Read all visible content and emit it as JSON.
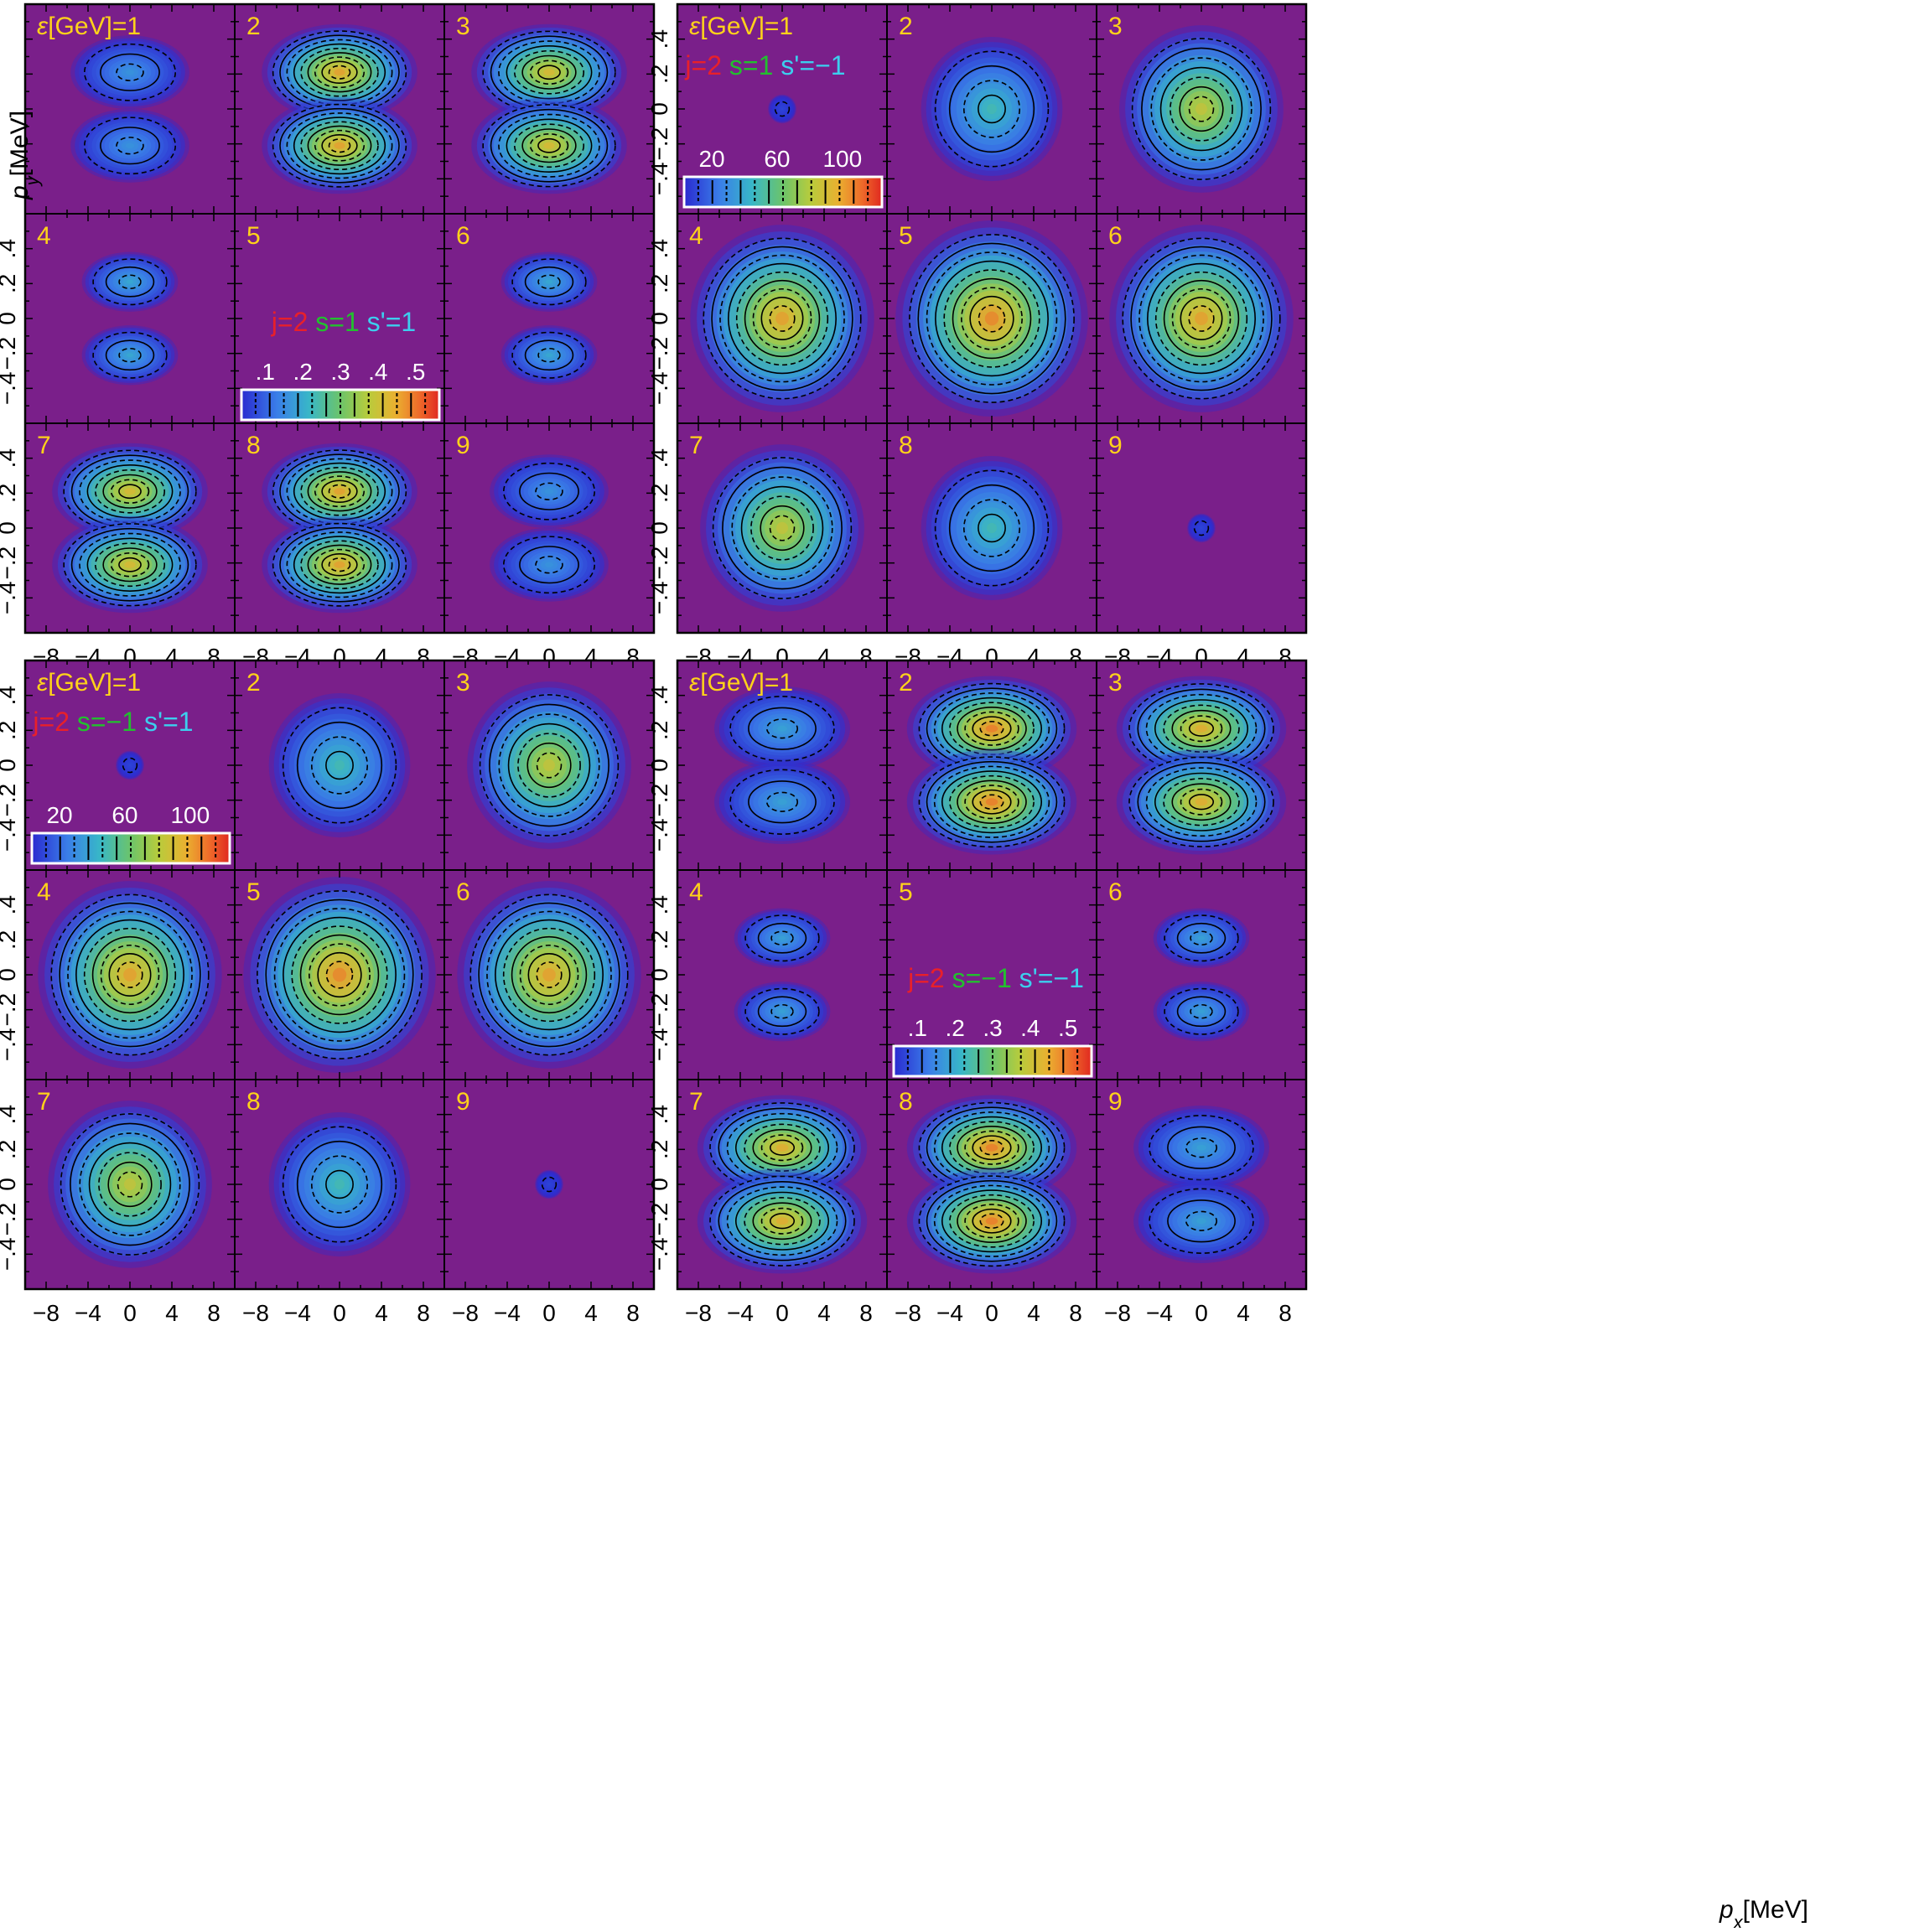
{
  "panel_label_prefix": "ε[GeV]=1",
  "y_axis_label": "p",
  "y_axis_label_sub": "y",
  "y_axis_label_unit": "[MeV]",
  "x_axis_label": "p",
  "x_axis_label_sub": "x",
  "x_axis_label_unit": "[MeV]",
  "colors": {
    "background": "#7a1f8a",
    "panel_number": "#ffd21a",
    "j_label": "#e8202a",
    "s_label": "#22c02e",
    "sp_label": "#3ccfee",
    "frame": "#000000",
    "legend_border": "#ffffff",
    "legend_text": "#ffffff"
  },
  "chart_data": [
    {
      "type": "heatmap",
      "grid": "3x3",
      "legend_position": "top-left",
      "panel_numbers": [
        "ε[GeV]=1",
        "2",
        "3",
        "4",
        "5",
        "6",
        "7",
        "8",
        "9"
      ],
      "quantum_numbers": {
        "j": "j=2",
        "s": "s=1",
        "sp": "s'=1"
      },
      "label_panel": 4,
      "colorbar_ticks": [
        ".1",
        ".2",
        ".3",
        ".4",
        ".5"
      ],
      "colorbar_panel": 4,
      "lobes": "two",
      "xlim": [
        -10,
        10
      ],
      "ylim": [
        -0.6,
        0.6
      ],
      "x_ticks": [
        "−8",
        "−4",
        "0",
        "4",
        "8"
      ],
      "y_ticks": [
        "−.4",
        "−.2",
        "0",
        ".2",
        ".4"
      ],
      "peak_by_panel": [
        0.26,
        0.85,
        0.78,
        0.32,
        0.0,
        0.32,
        0.78,
        0.85,
        0.26
      ],
      "ellipse_wx": [
        4.2,
        5.5,
        5.5,
        3.4,
        0.0,
        3.4,
        5.5,
        5.5,
        4.2
      ],
      "lobe_y": 0.21
    },
    {
      "type": "heatmap",
      "grid": "3x3",
      "legend_position": "top-left",
      "panel_numbers": [
        "ε[GeV]=1",
        "2",
        "3",
        "4",
        "5",
        "6",
        "7",
        "8",
        "9"
      ],
      "quantum_numbers": {
        "j": "j=2",
        "s": "s=1",
        "sp": "s'=−1"
      },
      "label_panel": 0,
      "colorbar_ticks": [
        "20",
        "60",
        "100"
      ],
      "colorbar_panel": 0,
      "lobes": "one",
      "xlim": [
        -10,
        10
      ],
      "ylim": [
        -0.6,
        0.6
      ],
      "x_ticks": [
        "−8",
        "−4",
        "0",
        "4",
        "8"
      ],
      "y_ticks": [
        "−.4",
        "−.2",
        "0",
        ".2",
        ".4"
      ],
      "peak_by_panel": [
        0.06,
        0.4,
        0.72,
        0.85,
        0.9,
        0.85,
        0.72,
        0.4,
        0.06
      ],
      "ellipse_wx": [
        1.0,
        5.0,
        5.8,
        6.5,
        6.8,
        6.5,
        5.8,
        5.0,
        1.0
      ],
      "lobe_y": 0.0
    },
    {
      "type": "heatmap",
      "grid": "3x3",
      "legend_position": "top-left",
      "panel_numbers": [
        "ε[GeV]=1",
        "2",
        "3",
        "4",
        "5",
        "6",
        "7",
        "8",
        "9"
      ],
      "quantum_numbers": {
        "j": "j=2",
        "s": "s=−1",
        "sp": "s'=1"
      },
      "label_panel": 0,
      "colorbar_ticks": [
        "20",
        "60",
        "100"
      ],
      "colorbar_panel": 0,
      "lobes": "one",
      "xlim": [
        -10,
        10
      ],
      "ylim": [
        -0.6,
        0.6
      ],
      "x_ticks": [
        "−8",
        "−4",
        "0",
        "4",
        "8"
      ],
      "y_ticks": [
        "−.4",
        "−.2",
        "0",
        ".2",
        ".4"
      ],
      "peak_by_panel": [
        0.06,
        0.4,
        0.72,
        0.85,
        0.9,
        0.85,
        0.72,
        0.4,
        0.06
      ],
      "ellipse_wx": [
        1.0,
        5.0,
        5.8,
        6.5,
        6.8,
        6.5,
        5.8,
        5.0,
        1.0
      ],
      "lobe_y": 0.0
    },
    {
      "type": "heatmap",
      "grid": "3x3",
      "legend_position": "top-left",
      "panel_numbers": [
        "ε[GeV]=1",
        "2",
        "3",
        "4",
        "5",
        "6",
        "7",
        "8",
        "9"
      ],
      "quantum_numbers": {
        "j": "j=2",
        "s": "s=−1",
        "sp": "s'=−1"
      },
      "label_panel": 4,
      "colorbar_ticks": [
        ".1",
        ".2",
        ".3",
        ".4",
        ".5"
      ],
      "colorbar_panel": 4,
      "lobes": "two",
      "xlim": [
        -10,
        10
      ],
      "ylim": [
        -0.6,
        0.6
      ],
      "x_ticks": [
        "−8",
        "−4",
        "0",
        "4",
        "8"
      ],
      "y_ticks": [
        "−.4",
        "−.2",
        "0",
        ".2",
        ".4"
      ],
      "peak_by_panel": [
        0.3,
        0.92,
        0.82,
        0.3,
        0.0,
        0.3,
        0.82,
        0.92,
        0.3
      ],
      "ellipse_wx": [
        4.8,
        6.0,
        6.0,
        3.4,
        0.0,
        3.4,
        6.0,
        6.0,
        4.8
      ],
      "lobe_y": 0.21
    }
  ]
}
